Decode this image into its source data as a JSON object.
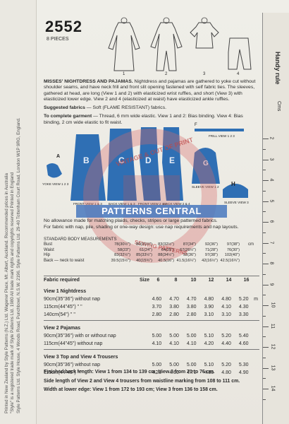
{
  "pattern": {
    "number": "2552",
    "pieces": "8 PIECES"
  },
  "sketch_views": [
    "1",
    "2",
    "3",
    "4"
  ],
  "ruler": {
    "title": "Handy rule",
    "unit": "Cms",
    "marks": [
      "2",
      "3",
      "4",
      "5",
      "6",
      "7",
      "8",
      "9",
      "10",
      "11",
      "12",
      "13",
      "14"
    ]
  },
  "side_text": {
    "line1": "Printed in New Zealand by Style Patterns (N.Z.) Ltd. Wagener Place, Mt. Albert, Auckland. Recommended prices in Australia",
    "line2": "\"Style\" is a registered trade mark of Style Patterns Ltd. 1980  All trade mark rights and copyrights reserved  Printed in England",
    "line3": "Style Patterns Ltd. Style House, 4 Woods Road, Punchbowl, N.S.W. 2196.   Style Patterns Ltd. 29-40 Tottenham Court Road, London W1P 9RG, England."
  },
  "description": {
    "heading": "MISSES' NIGHTDRESS AND PAJAMAS.",
    "body": "Nightdress and pajamas are gathered to yoke cut without shoulder seams, and have neck frill and front slit opening fastened with self fabric ties. The sleeves, gathered at head, are long (View 1 and 2) with elasticized wrist ruffles, and short (View 3) with elasticized lower edge. View 2 and 4 (elasticized at waist) have elasticized ankle ruffles.",
    "suggested_label": "Suggested fabrics",
    "suggested": " — Soft (FLAME RESISTANT) fabrics.",
    "complete_label": "To complete garment",
    "complete": " — Thread, 6 mm wide elastic. View 1 and 2: Bias binding. View 4: Bias binding, 2 cm wide elastic to fit waist."
  },
  "piece_labels": {
    "A": "A",
    "B": "B",
    "C": "C",
    "D": "D",
    "E": "E",
    "F": "F",
    "G": "G",
    "H": "H",
    "frill": "FRILL VIEW 1 2 3",
    "yoke": "YOKE VIEW 1 2 3",
    "front13": "FRONT VIEW 1 & 3",
    "back13": "BACK VIEW 1 & 3",
    "front24": "FRONT VIEW 2 & 4",
    "back24": "BACK VIEW 2 & 4",
    "sleeve12": "SLEEVE VIEW 1 2",
    "sleeve3": "SLEEVE VIEW 3"
  },
  "watermark": {
    "band": "PATTERNS CENTRAL",
    "arc_top": "VINTAGE & OUT OF PRINT",
    "arc_bottom": "SEWING PATTERNS"
  },
  "notes": {
    "plaids": "No allowance made for matching plaids, checks, stripes or large patterned fabrics.",
    "nap": "For fabric with nap, pile, shading or one-way design: use nap requirements and nap layouts."
  },
  "measurements": {
    "title": "STANDARD BODY MEASUREMENTS",
    "unit": "cm",
    "rows": [
      {
        "label": "Bust",
        "values": [
          "78(30½\")",
          "80(31½\")",
          "83(32½\")",
          "87(34\")",
          "92(36\")",
          "97(38\")"
        ]
      },
      {
        "label": "Waist",
        "values": [
          "58(23\")",
          "61(24\")",
          "64(25\")",
          "67(26½\")",
          "71(28\")",
          "76(30\")"
        ]
      },
      {
        "label": "Hip",
        "values": [
          "83(32½\")",
          "85(33½\")",
          "88(34½\")",
          "92(36\")",
          "97(38\")",
          "102(40\")"
        ]
      },
      {
        "label": "Back — neck to waist",
        "values": [
          "39.5(15½\")",
          "40(15¾\")",
          "40.5(16\")",
          "41.5(16¼\")",
          "42(16½\")",
          "42.5(16¾\")"
        ]
      }
    ]
  },
  "yardage": {
    "header_label": "Fabric required",
    "size_label": "Size",
    "sizes": [
      "6",
      "8",
      "10",
      "12",
      "14",
      "16"
    ],
    "views": [
      {
        "title": "View 1  Nightdress",
        "rows": [
          {
            "label": "90cm(35\"36\") without nap",
            "values": [
              "4.60",
              "4.70",
              "4.70",
              "4.80",
              "4.80",
              "5.20"
            ],
            "unit": "m"
          },
          {
            "label": "115cm(44\"45\")   \"       \"",
            "values": [
              "3.70",
              "3.80",
              "3.80",
              "3.90",
              "4.10",
              "4.30"
            ],
            "unit": ""
          },
          {
            "label": "140cm(54\")        \"       \"",
            "values": [
              "2.80",
              "2.80",
              "2.80",
              "3.10",
              "3.10",
              "3.30"
            ],
            "unit": ""
          }
        ]
      },
      {
        "title": "View 2  Pajamas",
        "rows": [
          {
            "label": "90cm(35\"36\") with or without nap",
            "values": [
              "5.00",
              "5.00",
              "5.00",
              "5.10",
              "5.20",
              "5.40"
            ],
            "unit": ""
          },
          {
            "label": "115cm(44\"45\") without nap",
            "values": [
              "4.10",
              "4.10",
              "4.10",
              "4.20",
              "4.40",
              "4.60"
            ],
            "unit": ""
          }
        ]
      },
      {
        "title": "View 3  Top and View 4  Trousers",
        "rows": [
          {
            "label": "90cm(35\"36\") without nap",
            "values": [
              "5.00",
              "5.00",
              "5.00",
              "5.10",
              "5.20",
              "5.30"
            ],
            "unit": ""
          },
          {
            "label": "115cm(44\"45\")   \"       \"",
            "values": [
              "4.30",
              "4.60",
              "4.70",
              "4.80",
              "4.80",
              "4.90"
            ],
            "unit": ""
          }
        ]
      }
    ]
  },
  "footer": {
    "line1": "Finished back length: View 1 from 134 to 139 cm; View 3 from 70 to 76 cm.",
    "line2": "Side length of View 2 and View 4 trousers from waistline marking from 108 to 111 cm.",
    "line3": "Width at lower edge: View 1 from 172 to 193 cm; View 3 from 136 to 158 cm."
  }
}
